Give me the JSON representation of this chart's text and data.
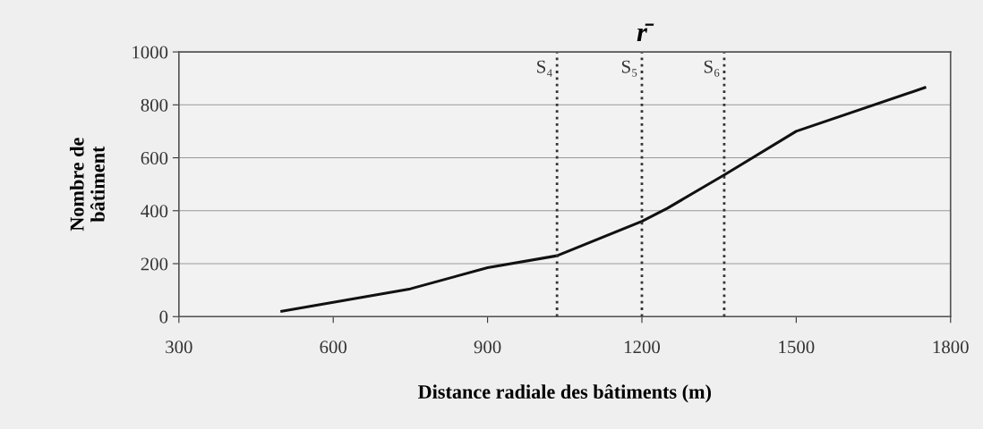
{
  "chart_data": {
    "type": "line",
    "xlabel": "Distance radiale des bâtiments (m)",
    "ylabel": "Nombre de\nbâtiment",
    "x": [
      500,
      750,
      900,
      1035,
      1200,
      1250,
      1360,
      1500,
      1750
    ],
    "series": [
      {
        "color": "#111111",
        "values": [
          20,
          105,
          185,
          230,
          360,
          410,
          535,
          700,
          865
        ]
      }
    ],
    "xlim": [
      300,
      1800
    ],
    "xticks": [
      300,
      600,
      900,
      1200,
      1500,
      1800
    ],
    "ylim": [
      0,
      1000
    ],
    "yticks": [
      0,
      200,
      400,
      600,
      800,
      1000
    ],
    "grid": "y",
    "marker": "none",
    "line_style": "solid",
    "ref_lines": [
      {
        "axis": "x",
        "value": 1035,
        "label": "S₄",
        "color": "#333333",
        "line_style": "dotted"
      },
      {
        "axis": "x",
        "value": 1200,
        "label": "S₅",
        "color": "#333333",
        "line_style": "dotted"
      },
      {
        "axis": "x",
        "value": 1360,
        "label": "S₆",
        "color": "#333333",
        "line_style": "dotted"
      }
    ],
    "annotations": [
      {
        "text": "r̄",
        "x": 1200,
        "y": 1000
      }
    ]
  }
}
